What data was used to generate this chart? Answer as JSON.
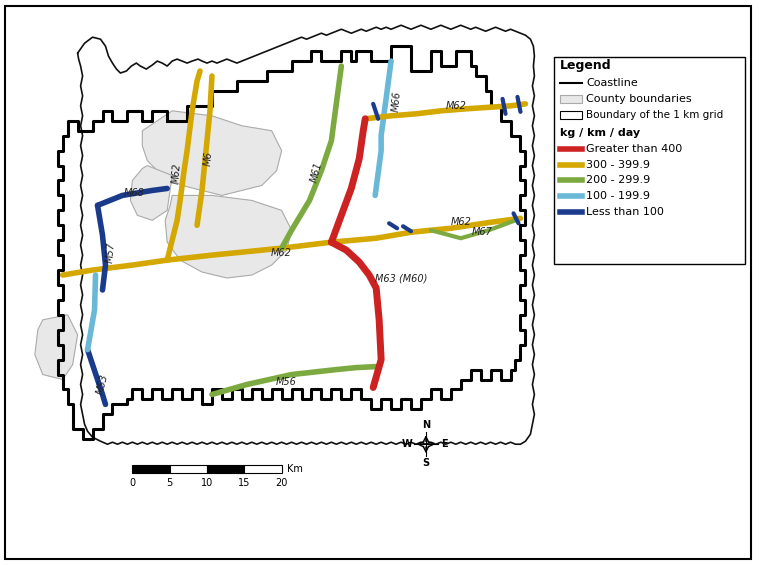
{
  "background_color": "#ffffff",
  "colors": {
    "red": "#cc2222",
    "yellow": "#d4a800",
    "green": "#7daa40",
    "light_blue": "#6ab8d8",
    "dark_blue": "#1a3a8c",
    "coastline": "#111111",
    "county_fill": "#e8e8e8",
    "county_edge": "#aaaaaa",
    "grid_boundary": "#000000"
  },
  "legend_entries": [
    {
      "label": "Greater than 400",
      "color": "#cc2222"
    },
    {
      "label": "300 - 399.9",
      "color": "#d4a800"
    },
    {
      "label": "200 - 299.9",
      "color": "#7daa40"
    },
    {
      "label": "100 - 199.9",
      "color": "#6ab8d8"
    },
    {
      "label": "Less than 100",
      "color": "#1a3a8c"
    }
  ],
  "scale_km": [
    0,
    5,
    10,
    15,
    20
  ],
  "compass_directions": [
    "N",
    "E",
    "S",
    "W"
  ],
  "compass_angles_deg": [
    90,
    0,
    270,
    180
  ]
}
